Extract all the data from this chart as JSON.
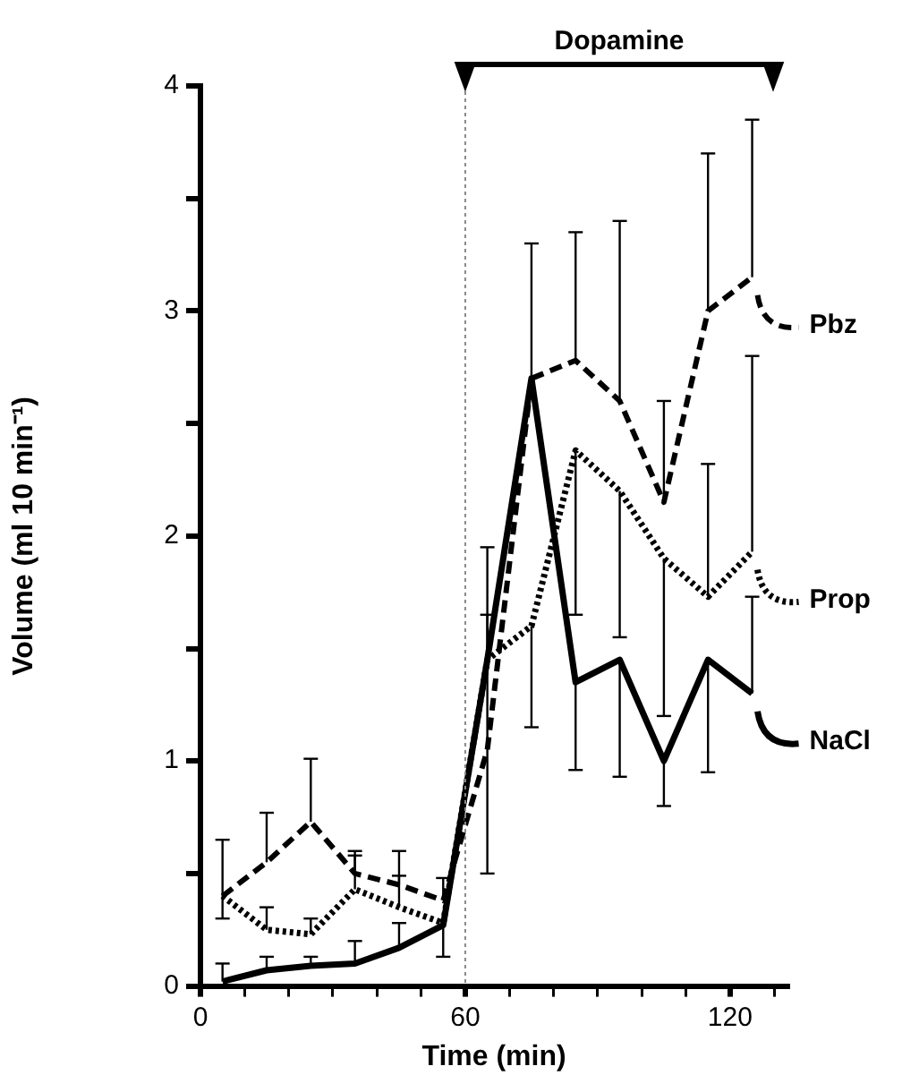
{
  "chart_data": {
    "type": "line",
    "xlabel": "Time (min)",
    "ylabel": "Volume (ml 10 min⁻¹)",
    "x": [
      5,
      15,
      25,
      35,
      45,
      55,
      65,
      75,
      85,
      95,
      105,
      115,
      125
    ],
    "xlim": [
      0,
      133
    ],
    "xticks": [
      0,
      {
        "value": 10,
        "label": null
      },
      {
        "value": 20,
        "label": null
      },
      {
        "value": 30,
        "label": null
      },
      {
        "value": 40,
        "label": null
      },
      {
        "value": 50,
        "label": null
      },
      60,
      {
        "value": 70,
        "label": null
      },
      {
        "value": 80,
        "label": null
      },
      {
        "value": 90,
        "label": null
      },
      {
        "value": 100,
        "label": null
      },
      {
        "value": 110,
        "label": null
      },
      120,
      {
        "value": 130,
        "label": null
      }
    ],
    "ylim": [
      0,
      4
    ],
    "yticks": [
      0,
      {
        "value": 0.5,
        "label": null
      },
      1,
      {
        "value": 1.5,
        "label": null
      },
      2,
      {
        "value": 2.5,
        "label": null
      },
      3,
      {
        "value": 3.5,
        "label": null
      },
      4
    ],
    "grid": false,
    "legend": "right",
    "marker": "none",
    "ref_lines": [
      {
        "axis": "x",
        "value": 60,
        "label": null,
        "color": "#888888",
        "line_style": "dotted"
      }
    ],
    "annotations": [
      "Dopamine"
    ],
    "series": [
      {
        "name": "Pbz",
        "color": "#000000",
        "line_style": "dashed",
        "values": [
          0.4,
          0.55,
          0.73,
          0.5,
          0.45,
          0.38,
          1.05,
          2.7,
          2.78,
          2.6,
          2.15,
          3.0,
          3.15
        ],
        "errors": [
          [
            0.4,
            0.65
          ],
          [
            0.55,
            0.77
          ],
          [
            0.73,
            1.01
          ],
          [
            0.5,
            0.6
          ],
          [
            0.45,
            0.6
          ],
          [
            0.38,
            0.48
          ],
          [
            0.5,
            1.65
          ],
          null,
          [
            2.78,
            3.35
          ],
          [
            2.6,
            3.4
          ],
          [
            2.15,
            2.6
          ],
          [
            3.0,
            3.7
          ],
          [
            3.15,
            3.85
          ]
        ]
      },
      {
        "name": "Prop",
        "color": "#000000",
        "line_style": "dotted",
        "values": [
          0.4,
          0.25,
          0.23,
          0.43,
          0.35,
          0.28,
          1.45,
          1.6,
          2.38,
          2.2,
          1.9,
          1.73,
          1.93
        ],
        "errors": [
          [
            0.3,
            0.4
          ],
          [
            0.25,
            0.35
          ],
          [
            0.23,
            0.3
          ],
          [
            0.43,
            0.58
          ],
          [
            0.35,
            0.49
          ],
          null,
          [
            1.45,
            1.95
          ],
          [
            1.15,
            1.6
          ],
          [
            1.65,
            2.38
          ],
          [
            1.55,
            2.2
          ],
          [
            1.2,
            1.9
          ],
          [
            1.73,
            2.32
          ],
          [
            1.93,
            2.8
          ]
        ]
      },
      {
        "name": "NaCl",
        "color": "#000000",
        "line_style": "solid",
        "values": [
          0.02,
          0.07,
          0.09,
          0.1,
          0.17,
          0.27,
          1.45,
          2.7,
          1.35,
          1.45,
          1.0,
          1.45,
          1.3
        ],
        "errors": [
          [
            0.02,
            0.1
          ],
          [
            0.07,
            0.13
          ],
          [
            0.09,
            0.13
          ],
          [
            0.1,
            0.2
          ],
          [
            0.17,
            0.28
          ],
          [
            0.13,
            0.27
          ],
          null,
          [
            2.7,
            3.3
          ],
          [
            0.96,
            1.35
          ],
          [
            0.93,
            1.45
          ],
          [
            0.8,
            1.0
          ],
          [
            0.95,
            1.45
          ],
          [
            1.3,
            1.73
          ]
        ]
      }
    ]
  }
}
